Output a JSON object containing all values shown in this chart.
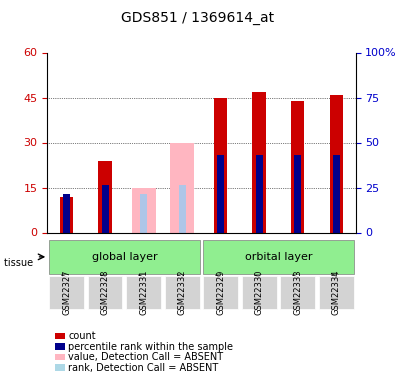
{
  "title": "GDS851 / 1369614_at",
  "samples": [
    "GSM22327",
    "GSM22328",
    "GSM22331",
    "GSM22332",
    "GSM22329",
    "GSM22330",
    "GSM22333",
    "GSM22334"
  ],
  "groups": [
    "global layer",
    "global layer",
    "global layer",
    "global layer",
    "orbital layer",
    "orbital layer",
    "orbital layer",
    "orbital layer"
  ],
  "group_labels": [
    "global layer",
    "orbital layer"
  ],
  "group_colors": [
    "#90ee90",
    "#90ee90"
  ],
  "red_values": [
    12,
    24,
    0,
    0,
    45,
    47,
    44,
    46
  ],
  "blue_values": [
    13,
    16,
    0,
    0,
    26,
    26,
    26,
    26
  ],
  "pink_values": [
    0,
    0,
    15,
    30,
    0,
    0,
    0,
    0
  ],
  "lightblue_values": [
    0,
    0,
    13,
    16,
    0,
    0,
    0,
    0
  ],
  "absent": [
    false,
    false,
    true,
    true,
    false,
    false,
    false,
    false
  ],
  "ylim_left": [
    0,
    60
  ],
  "ylim_right": [
    0,
    100
  ],
  "yticks_left": [
    0,
    15,
    30,
    45,
    60
  ],
  "yticks_right": [
    0,
    25,
    50,
    75,
    100
  ],
  "left_color": "#cc0000",
  "right_color": "#0000cc",
  "bar_width": 0.35,
  "bg_color": "#ffffff",
  "plot_bg": "#ffffff",
  "legend_items": [
    {
      "label": "count",
      "color": "#cc0000"
    },
    {
      "label": "percentile rank within the sample",
      "color": "#00008b"
    },
    {
      "label": "value, Detection Call = ABSENT",
      "color": "#ffb6c1"
    },
    {
      "label": "rank, Detection Call = ABSENT",
      "color": "#add8e6"
    }
  ],
  "tissue_label": "tissue",
  "xlabel_color": "#333333",
  "grid_color": "#000000"
}
